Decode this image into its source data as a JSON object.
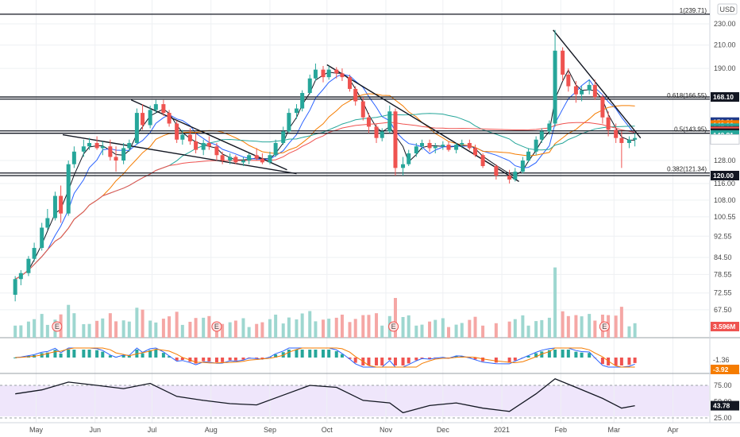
{
  "header": {
    "currency": "USD"
  },
  "chart_data": {
    "type": "candlestick",
    "price_axis": {
      "ticks": [
        "230.00",
        "210.00",
        "190.00",
        "168.10",
        "150.91",
        "149.10",
        "147.06",
        "145.35",
        "145.03",
        "143.90",
        "142.81",
        "140.15",
        "128.00",
        "120.00",
        "116.00",
        "108.00",
        "100.55",
        "92.55",
        "84.50",
        "78.55",
        "72.55",
        "67.50"
      ],
      "ticks_plain": [
        "230.00",
        "210.00",
        "190.00",
        "128.00",
        "116.00",
        "108.00",
        "100.55",
        "92.55",
        "84.50",
        "78.55",
        "72.55",
        "67.50"
      ]
    },
    "x_axis": {
      "labels": [
        "May",
        "Jun",
        "Jul",
        "Aug",
        "Sep",
        "Oct",
        "Nov",
        "Dec",
        "2021",
        "Feb",
        "Mar",
        "Apr"
      ]
    },
    "price_tags": [
      {
        "value": "168.10",
        "color": "#131722"
      },
      {
        "value": "150.91",
        "color": "#1e3a8a"
      },
      {
        "value": "149.10",
        "color": "#f57c00"
      },
      {
        "value": "147.06",
        "color": "#26a69a"
      },
      {
        "value": "145.35",
        "color": "#131722"
      },
      {
        "value": "145.03",
        "color": "#ef5350"
      },
      {
        "value": "143.90",
        "color": "#131722"
      },
      {
        "value": "142.81",
        "color": "#26a69a"
      },
      {
        "value": "140.15",
        "color": "#ffffff"
      },
      {
        "value": "120.00",
        "color": "#131722"
      }
    ],
    "fib_levels": [
      {
        "label": "1(239.71)",
        "value": 239.71
      },
      {
        "label": "0.618(166.55)",
        "value": 166.55
      },
      {
        "label": "0.5(143.95)",
        "value": 143.95
      },
      {
        "label": "0.382(121.34)",
        "value": 121.34
      }
    ],
    "horizontal_levels": [
      239.71,
      168.1,
      166.55,
      145.35,
      143.9,
      121.34,
      120.0
    ],
    "trendlines": [
      {
        "start": [
          "2020-05-15",
          143
        ],
        "end": [
          "2020-09-15",
          121
        ]
      },
      {
        "start": [
          "2020-06-20",
          166
        ],
        "end": [
          "2020-09-10",
          123
        ]
      },
      {
        "start": [
          "2020-10-01",
          193
        ],
        "end": [
          "2021-01-10",
          117
        ]
      },
      {
        "start": [
          "2021-01-28",
          224
        ],
        "end": [
          "2021-03-15",
          141
        ]
      }
    ],
    "candles": [
      [
        "2020-04-20",
        72,
        78,
        70,
        77
      ],
      [
        "2020-04-23",
        77,
        80,
        75,
        79
      ],
      [
        "2020-04-27",
        79,
        85,
        78,
        84
      ],
      [
        "2020-04-30",
        84,
        90,
        83,
        88
      ],
      [
        "2020-05-04",
        88,
        98,
        87,
        96
      ],
      [
        "2020-05-07",
        96,
        104,
        95,
        100
      ],
      [
        "2020-05-11",
        100,
        112,
        99,
        110
      ],
      [
        "2020-05-14",
        110,
        115,
        98,
        102
      ],
      [
        "2020-05-18",
        102,
        128,
        101,
        126
      ],
      [
        "2020-05-21",
        126,
        136,
        124,
        133
      ],
      [
        "2020-05-26",
        133,
        140,
        130,
        136
      ],
      [
        "2020-05-29",
        136,
        141,
        134,
        138
      ],
      [
        "2020-06-02",
        138,
        142,
        134,
        135
      ],
      [
        "2020-06-05",
        135,
        139,
        131,
        136
      ],
      [
        "2020-06-09",
        136,
        140,
        128,
        130
      ],
      [
        "2020-06-12",
        130,
        136,
        122,
        128
      ],
      [
        "2020-06-16",
        128,
        138,
        126,
        135
      ],
      [
        "2020-06-19",
        135,
        140,
        133,
        138
      ],
      [
        "2020-06-23",
        138,
        160,
        137,
        157
      ],
      [
        "2020-06-26",
        157,
        163,
        146,
        149
      ],
      [
        "2020-06-30",
        149,
        162,
        147,
        159
      ],
      [
        "2020-07-03",
        159,
        166,
        157,
        163
      ],
      [
        "2020-07-07",
        163,
        166,
        155,
        157
      ],
      [
        "2020-07-10",
        157,
        159,
        148,
        150
      ],
      [
        "2020-07-14",
        150,
        152,
        138,
        140
      ],
      [
        "2020-07-17",
        140,
        146,
        137,
        143
      ],
      [
        "2020-07-21",
        143,
        147,
        137,
        139
      ],
      [
        "2020-07-24",
        139,
        144,
        132,
        134
      ],
      [
        "2020-07-28",
        134,
        140,
        131,
        138
      ],
      [
        "2020-07-31",
        138,
        142,
        134,
        136
      ],
      [
        "2020-08-04",
        136,
        138,
        128,
        131
      ],
      [
        "2020-08-07",
        131,
        133,
        126,
        128
      ],
      [
        "2020-08-11",
        128,
        132,
        126,
        130
      ],
      [
        "2020-08-14",
        130,
        131,
        126,
        127
      ],
      [
        "2020-08-18",
        127,
        130,
        125,
        128
      ],
      [
        "2020-08-21",
        128,
        132,
        126,
        131
      ],
      [
        "2020-08-25",
        131,
        135,
        128,
        129
      ],
      [
        "2020-08-28",
        129,
        132,
        126,
        127
      ],
      [
        "2020-09-01",
        127,
        133,
        126,
        131
      ],
      [
        "2020-09-04",
        131,
        140,
        130,
        138
      ],
      [
        "2020-09-08",
        138,
        148,
        137,
        145
      ],
      [
        "2020-09-11",
        145,
        160,
        144,
        157
      ],
      [
        "2020-09-15",
        157,
        163,
        153,
        160
      ],
      [
        "2020-09-18",
        160,
        173,
        158,
        171
      ],
      [
        "2020-09-22",
        171,
        185,
        170,
        182
      ],
      [
        "2020-09-25",
        182,
        194,
        180,
        189
      ],
      [
        "2020-09-29",
        189,
        192,
        179,
        183
      ],
      [
        "2020-10-02",
        183,
        192,
        181,
        189
      ],
      [
        "2020-10-06",
        189,
        191,
        182,
        186
      ],
      [
        "2020-10-09",
        186,
        190,
        180,
        183
      ],
      [
        "2020-10-13",
        183,
        185,
        172,
        174
      ],
      [
        "2020-10-16",
        174,
        176,
        162,
        165
      ],
      [
        "2020-10-20",
        165,
        168,
        152,
        154
      ],
      [
        "2020-10-23",
        154,
        157,
        144,
        148
      ],
      [
        "2020-10-27",
        148,
        150,
        138,
        141
      ],
      [
        "2020-10-30",
        141,
        147,
        139,
        145
      ],
      [
        "2020-11-03",
        145,
        162,
        144,
        158
      ],
      [
        "2020-11-06",
        158,
        160,
        120,
        124
      ],
      [
        "2020-11-10",
        124,
        130,
        120,
        126
      ],
      [
        "2020-11-13",
        126,
        134,
        125,
        132
      ],
      [
        "2020-11-17",
        132,
        138,
        130,
        136
      ],
      [
        "2020-11-20",
        136,
        140,
        134,
        138
      ],
      [
        "2020-11-24",
        138,
        140,
        133,
        135
      ],
      [
        "2020-11-27",
        135,
        138,
        132,
        136
      ],
      [
        "2020-12-01",
        136,
        139,
        134,
        137
      ],
      [
        "2020-12-04",
        137,
        139,
        133,
        134
      ],
      [
        "2020-12-08",
        134,
        138,
        132,
        137
      ],
      [
        "2020-12-11",
        137,
        140,
        135,
        138
      ],
      [
        "2020-12-15",
        138,
        140,
        134,
        135
      ],
      [
        "2020-12-18",
        135,
        137,
        130,
        131
      ],
      [
        "2020-12-22",
        131,
        132,
        124,
        125
      ],
      [
        "2020-12-29",
        125,
        126,
        118,
        120
      ],
      [
        "2021-01-05",
        120,
        123,
        116,
        118
      ],
      [
        "2021-01-08",
        118,
        124,
        117,
        122
      ],
      [
        "2021-01-12",
        122,
        130,
        121,
        128
      ],
      [
        "2021-01-15",
        128,
        135,
        127,
        133
      ],
      [
        "2021-01-19",
        133,
        142,
        131,
        140
      ],
      [
        "2021-01-22",
        140,
        147,
        138,
        145
      ],
      [
        "2021-01-26",
        145,
        152,
        143,
        150
      ],
      [
        "2021-01-29",
        150,
        224,
        148,
        205
      ],
      [
        "2021-02-02",
        205,
        208,
        180,
        185
      ],
      [
        "2021-02-05",
        185,
        190,
        172,
        176
      ],
      [
        "2021-02-09",
        176,
        180,
        164,
        170
      ],
      [
        "2021-02-12",
        170,
        176,
        165,
        173
      ],
      [
        "2021-02-16",
        173,
        181,
        170,
        177
      ],
      [
        "2021-02-19",
        177,
        181,
        166,
        168
      ],
      [
        "2021-02-23",
        168,
        170,
        150,
        154
      ],
      [
        "2021-02-26",
        154,
        158,
        142,
        146
      ],
      [
        "2021-03-02",
        146,
        150,
        138,
        141
      ],
      [
        "2021-03-05",
        141,
        145,
        124,
        138
      ],
      [
        "2021-03-09",
        138,
        142,
        135,
        140
      ],
      [
        "2021-03-12",
        140,
        144,
        136,
        141
      ]
    ],
    "macd": {
      "labels": [
        "-1.36",
        "-3.92"
      ]
    },
    "rsi": {
      "ticks": [
        "75.00",
        "50.00",
        "25.00"
      ],
      "value_label": "43.78",
      "overbought": 70,
      "oversold": 30,
      "values": [
        [
          "2020-04-20",
          62
        ],
        [
          "2020-05-04",
          68
        ],
        [
          "2020-05-18",
          80
        ],
        [
          "2020-06-02",
          75
        ],
        [
          "2020-06-16",
          70
        ],
        [
          "2020-06-30",
          78
        ],
        [
          "2020-07-14",
          58
        ],
        [
          "2020-07-28",
          52
        ],
        [
          "2020-08-11",
          47
        ],
        [
          "2020-08-25",
          45
        ],
        [
          "2020-09-08",
          60
        ],
        [
          "2020-09-22",
          75
        ],
        [
          "2020-10-06",
          72
        ],
        [
          "2020-10-20",
          52
        ],
        [
          "2020-11-03",
          48
        ],
        [
          "2020-11-10",
          33
        ],
        [
          "2020-11-24",
          44
        ],
        [
          "2020-12-08",
          48
        ],
        [
          "2020-12-22",
          40
        ],
        [
          "2021-01-05",
          35
        ],
        [
          "2021-01-19",
          62
        ],
        [
          "2021-01-29",
          85
        ],
        [
          "2021-02-09",
          72
        ],
        [
          "2021-02-23",
          55
        ],
        [
          "2021-03-05",
          40
        ],
        [
          "2021-03-12",
          43.78
        ]
      ]
    },
    "volume": {
      "label": "3.596M"
    },
    "earnings_markers": [
      "2020-05-12",
      "2020-08-04",
      "2020-11-05",
      "2021-02-24"
    ]
  }
}
